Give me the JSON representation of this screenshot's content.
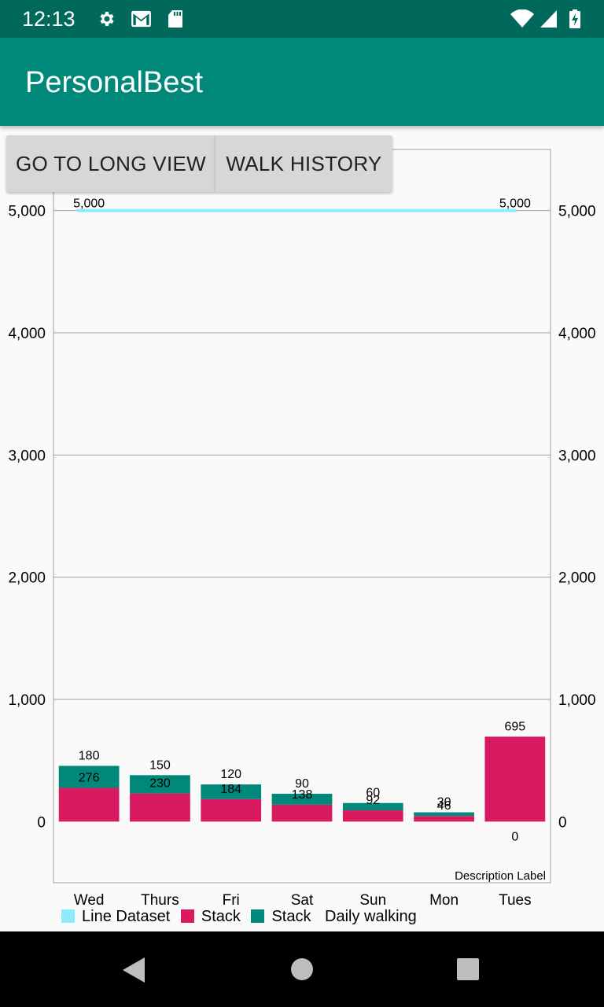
{
  "status_bar": {
    "time": "12:13",
    "left_icons": [
      "gear-icon",
      "gmail-icon",
      "sd-card-icon"
    ],
    "right_icons": [
      "wifi-icon",
      "signal-icon",
      "battery-charging-icon"
    ]
  },
  "app_bar": {
    "title": "PersonalBest"
  },
  "buttons": {
    "long_view": "GO TO LONG VIEW",
    "walk_history": "WALK HISTORY"
  },
  "chart_data": {
    "type": "bar",
    "stacked": true,
    "categories": [
      "Wed",
      "Thurs",
      "Fri",
      "Sat",
      "Sun",
      "Mon",
      "Tues"
    ],
    "series": [
      {
        "name": "Stack",
        "color": "#d81b60",
        "values": [
          276,
          230,
          184,
          138,
          92,
          46,
          695
        ]
      },
      {
        "name": "Stack",
        "color": "#00897b",
        "values": [
          180,
          150,
          120,
          90,
          60,
          30,
          0
        ]
      }
    ],
    "line": {
      "name": "Line Dataset",
      "color": "#8eeaff",
      "value": 5000,
      "start_label": "5,000",
      "end_label": "5,000"
    },
    "y_ticks": [
      0,
      1000,
      2000,
      3000,
      4000,
      5000
    ],
    "y_tick_labels": [
      "0",
      "1,000",
      "2,000",
      "3,000",
      "4,000",
      "5,000"
    ],
    "ylim": [
      -500,
      5500
    ],
    "grid": true,
    "description": "Description Label",
    "legend": {
      "placement": "bottom-left",
      "entries": [
        "Line Dataset",
        "Stack",
        "Stack"
      ],
      "extra_label": "Daily walking"
    }
  },
  "nav_bar": {
    "icons": [
      "back-icon",
      "home-icon",
      "recents-icon"
    ]
  }
}
